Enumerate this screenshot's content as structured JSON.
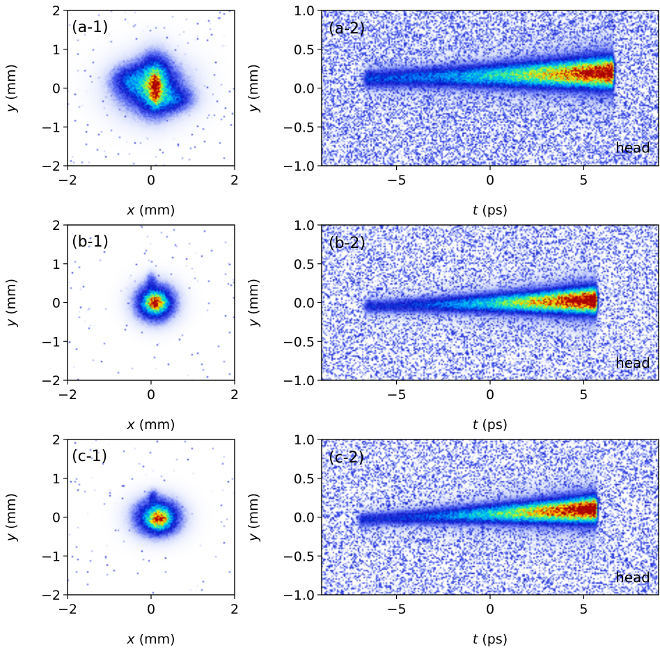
{
  "chart_data": [
    {
      "panel": "(a-1)",
      "type": "heatmap",
      "xlabel_var": "x",
      "xlabel_unit": " (mm)",
      "ylabel_var": "y",
      "ylabel_unit": " (mm)",
      "xlim": [
        -2,
        2
      ],
      "ylim": [
        -2,
        2
      ],
      "xticks": [
        -2,
        0,
        2
      ],
      "xtick_labels": [
        "−2",
        "0",
        "2"
      ],
      "yticks": [
        -2,
        -1,
        0,
        1,
        2
      ],
      "ytick_labels": [
        "−2",
        "−1",
        "0",
        "1",
        "2"
      ],
      "blobs": [
        {
          "x": 0.0,
          "y": 0.0,
          "sx": 0.6,
          "sy": 0.5,
          "amp": 0.35
        },
        {
          "x": 0.1,
          "y": 0.15,
          "sx": 0.25,
          "sy": 0.5,
          "amp": 0.35
        },
        {
          "x": 0.1,
          "y": 0.0,
          "sx": 0.09,
          "sy": 0.28,
          "amp": 0.45
        },
        {
          "x": 0.6,
          "y": -0.3,
          "sx": 0.3,
          "sy": 0.2,
          "amp": 0.2
        },
        {
          "x": -0.5,
          "y": 0.2,
          "sx": 0.3,
          "sy": 0.25,
          "amp": 0.2
        }
      ],
      "noise_density": 0.012
    },
    {
      "panel": "(a-2)",
      "type": "heatmap",
      "xlabel_var": "t",
      "xlabel_unit": " (ps)",
      "ylabel_var": "y",
      "ylabel_unit": " (mm)",
      "xlim": [
        -9,
        9
      ],
      "ylim": [
        -1,
        1
      ],
      "xticks": [
        -5,
        0,
        5
      ],
      "xtick_labels": [
        "−5",
        "0",
        "5"
      ],
      "yticks": [
        -1.0,
        -0.5,
        0.0,
        0.5,
        1.0
      ],
      "ytick_labels": [
        "−1.0",
        "−0.5",
        "0.0",
        "0.5",
        "1.0"
      ],
      "annotation": "head",
      "streak": {
        "t_start": -6.5,
        "t_end": 6.5,
        "y_start": 0.12,
        "y_end": 0.2,
        "width_start": 0.08,
        "width_end": 0.12,
        "amp_start": 0.3,
        "amp_end": 0.95
      },
      "noise_density": 0.55
    },
    {
      "panel": "(b-1)",
      "type": "heatmap",
      "xlabel_var": "x",
      "xlabel_unit": " (mm)",
      "ylabel_var": "y",
      "ylabel_unit": " (mm)",
      "xlim": [
        -2,
        2
      ],
      "ylim": [
        -2,
        2
      ],
      "xticks": [
        -2,
        0,
        2
      ],
      "xtick_labels": [
        "−2",
        "0",
        "2"
      ],
      "yticks": [
        -2,
        -1,
        0,
        1,
        2
      ],
      "ytick_labels": [
        "−2",
        "−1",
        "0",
        "1",
        "2"
      ],
      "blobs": [
        {
          "x": 0.1,
          "y": 0.0,
          "sx": 0.33,
          "sy": 0.33,
          "amp": 0.55
        },
        {
          "x": 0.1,
          "y": 0.0,
          "sx": 0.15,
          "sy": 0.15,
          "amp": 0.5
        },
        {
          "x": 0.0,
          "y": 0.6,
          "sx": 0.08,
          "sy": 0.15,
          "amp": 0.15
        }
      ],
      "noise_density": 0.008
    },
    {
      "panel": "(b-2)",
      "type": "heatmap",
      "xlabel_var": "t",
      "xlabel_unit": " (ps)",
      "ylabel_var": "y",
      "ylabel_unit": " (mm)",
      "xlim": [
        -9,
        9
      ],
      "ylim": [
        -1,
        1
      ],
      "xticks": [
        -5,
        0,
        5
      ],
      "xtick_labels": [
        "−5",
        "0",
        "5"
      ],
      "yticks": [
        -1.0,
        -0.5,
        0.0,
        0.5,
        1.0
      ],
      "ytick_labels": [
        "−1.0",
        "−0.5",
        "0.0",
        "0.5",
        "1.0"
      ],
      "annotation": "head",
      "streak": {
        "t_start": -6.5,
        "t_end": 5.6,
        "y_start": -0.05,
        "y_end": 0.03,
        "width_start": 0.06,
        "width_end": 0.1,
        "amp_start": 0.25,
        "amp_end": 1.0
      },
      "noise_density": 0.45
    },
    {
      "panel": "(c-1)",
      "type": "heatmap",
      "xlabel_var": "x",
      "xlabel_unit": " (mm)",
      "ylabel_var": "y",
      "ylabel_unit": " (mm)",
      "xlim": [
        -2,
        2
      ],
      "ylim": [
        -2,
        2
      ],
      "xticks": [
        -2,
        0,
        2
      ],
      "xtick_labels": [
        "−2",
        "0",
        "2"
      ],
      "yticks": [
        -2,
        -1,
        0,
        1,
        2
      ],
      "ytick_labels": [
        "−2",
        "−1",
        "0",
        "1",
        "2"
      ],
      "blobs": [
        {
          "x": 0.15,
          "y": 0.0,
          "sx": 0.38,
          "sy": 0.33,
          "amp": 0.55
        },
        {
          "x": 0.2,
          "y": -0.05,
          "sx": 0.16,
          "sy": 0.16,
          "amp": 0.5
        },
        {
          "x": 0.05,
          "y": 0.55,
          "sx": 0.08,
          "sy": 0.12,
          "amp": 0.15
        }
      ],
      "noise_density": 0.008
    },
    {
      "panel": "(c-2)",
      "type": "heatmap",
      "xlabel_var": "t",
      "xlabel_unit": " (ps)",
      "ylabel_var": "y",
      "ylabel_unit": " (mm)",
      "xlim": [
        -9,
        9
      ],
      "ylim": [
        -1,
        1
      ],
      "xticks": [
        -5,
        0,
        5
      ],
      "xtick_labels": [
        "−5",
        "0",
        "5"
      ],
      "yticks": [
        -1.0,
        -0.5,
        0.0,
        0.5,
        1.0
      ],
      "ytick_labels": [
        "−1.0",
        "−0.5",
        "0.0",
        "0.5",
        "1.0"
      ],
      "annotation": "head",
      "streak": {
        "t_start": -6.8,
        "t_end": 5.6,
        "y_start": -0.03,
        "y_end": 0.1,
        "width_start": 0.06,
        "width_end": 0.1,
        "amp_start": 0.25,
        "amp_end": 1.0
      },
      "noise_density": 0.45
    }
  ]
}
